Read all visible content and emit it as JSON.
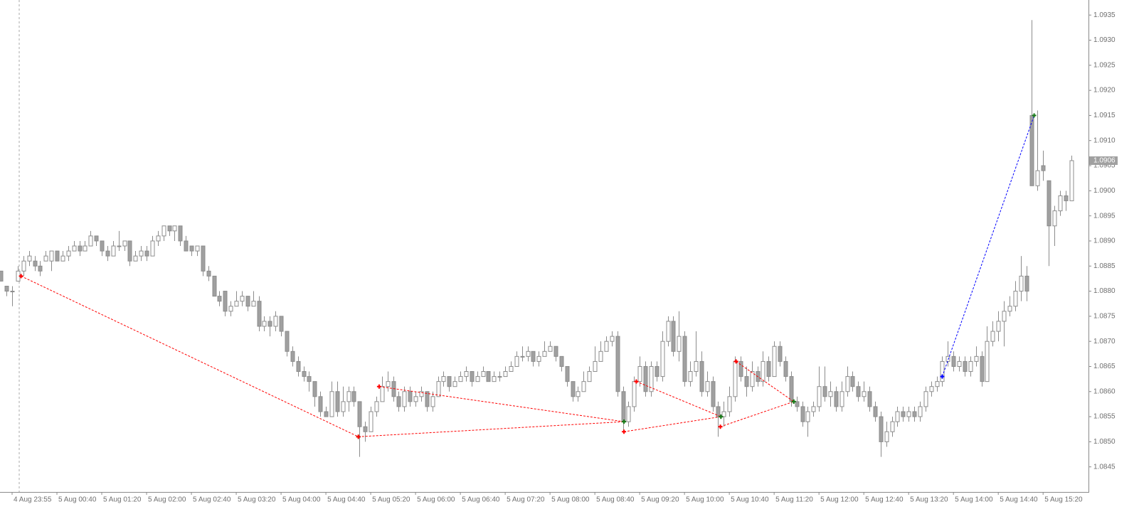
{
  "chart_data": {
    "type": "candlestick",
    "up_color": "#ffffff",
    "down_color": "#a0a0a0",
    "outline_color": "#8c8c8c",
    "current_price": 1.0906,
    "xlim": [
      -0.16,
      194.1
    ],
    "ylim": [
      1.084,
      1.0938
    ],
    "xticks": [
      {
        "value": 2,
        "label": "4 Aug 23:55"
      },
      {
        "value": 10,
        "label": "5 Aug 00:40"
      },
      {
        "value": 18,
        "label": "5 Aug 01:20"
      },
      {
        "value": 26,
        "label": "5 Aug 02:00"
      },
      {
        "value": 34,
        "label": "5 Aug 02:40"
      },
      {
        "value": 42,
        "label": "5 Aug 03:20"
      },
      {
        "value": 50,
        "label": "5 Aug 04:00"
      },
      {
        "value": 58,
        "label": "5 Aug 04:40"
      },
      {
        "value": 66,
        "label": "5 Aug 05:20"
      },
      {
        "value": 74,
        "label": "5 Aug 06:00"
      },
      {
        "value": 82,
        "label": "5 Aug 06:40"
      },
      {
        "value": 90,
        "label": "5 Aug 07:20"
      },
      {
        "value": 98,
        "label": "5 Aug 08:00"
      },
      {
        "value": 106,
        "label": "5 Aug 08:40"
      },
      {
        "value": 114,
        "label": "5 Aug 09:20"
      },
      {
        "value": 122,
        "label": "5 Aug 10:00"
      },
      {
        "value": 130,
        "label": "5 Aug 10:40"
      },
      {
        "value": 138,
        "label": "5 Aug 11:20"
      },
      {
        "value": 146,
        "label": "5 Aug 12:00"
      },
      {
        "value": 154,
        "label": "5 Aug 12:40"
      },
      {
        "value": 162,
        "label": "5 Aug 13:20"
      },
      {
        "value": 170,
        "label": "5 Aug 14:00"
      },
      {
        "value": 178,
        "label": "5 Aug 14:40"
      },
      {
        "value": 186,
        "label": "5 Aug 15:20"
      }
    ],
    "yticks": [
      1.0845,
      {
        "value": 1.085,
        "label": "1.0850"
      },
      1.0855,
      {
        "value": 1.086,
        "label": "1.0860"
      },
      1.0865,
      {
        "value": 1.087,
        "label": "1.0870"
      },
      1.0875,
      {
        "value": 1.088,
        "label": "1.0880"
      },
      1.0885,
      {
        "value": 1.089,
        "label": "1.0890"
      },
      1.0895,
      {
        "value": 1.09,
        "label": "1.0900"
      },
      1.0905,
      {
        "value": 1.091,
        "label": "1.0910"
      },
      1.0915,
      {
        "value": 1.092,
        "label": "1.0920"
      },
      1.0925,
      {
        "value": 1.093,
        "label": "1.0930"
      },
      1.0935
    ],
    "candles": [
      [
        1.0884,
        1.0884,
        1.0882,
        1.0882
      ],
      [
        1.0881,
        1.0881,
        1.0879,
        1.088
      ],
      [
        1.088,
        1.0881,
        1.0877,
        1.088
      ],
      [
        1.0882,
        1.0885,
        1.0882,
        1.0884
      ],
      [
        1.0884,
        1.0887,
        1.0883,
        1.0886
      ],
      [
        1.0886,
        1.0888,
        1.0885,
        1.0887
      ],
      [
        1.0886,
        1.0887,
        1.0884,
        1.0885
      ],
      [
        1.0885,
        1.0886,
        1.0883,
        1.0884
      ],
      [
        1.0886,
        1.0888,
        1.0886,
        1.0887
      ],
      [
        1.0886,
        1.0888,
        1.0884,
        1.0888
      ],
      [
        1.0888,
        1.0888,
        1.0886,
        1.0886
      ],
      [
        1.0886,
        1.0888,
        1.0886,
        1.0887
      ],
      [
        1.0887,
        1.0889,
        1.0886,
        1.0888
      ],
      [
        1.0888,
        1.089,
        1.0888,
        1.0889
      ],
      [
        1.0889,
        1.089,
        1.0887,
        1.0888
      ],
      [
        1.0888,
        1.089,
        1.0888,
        1.0889
      ],
      [
        1.0889,
        1.0892,
        1.0889,
        1.0891
      ],
      [
        1.0891,
        1.0891,
        1.0889,
        1.089
      ],
      [
        1.089,
        1.089,
        1.0887,
        1.0888
      ],
      [
        1.0888,
        1.0889,
        1.0886,
        1.0887
      ],
      [
        1.0887,
        1.089,
        1.0887,
        1.0889
      ],
      [
        1.0889,
        1.0892,
        1.0888,
        1.0889
      ],
      [
        1.0889,
        1.089,
        1.0888,
        1.089
      ],
      [
        1.089,
        1.089,
        1.0885,
        1.0886
      ],
      [
        1.0886,
        1.0888,
        1.0886,
        1.0887
      ],
      [
        1.0887,
        1.0889,
        1.0886,
        1.0888
      ],
      [
        1.0888,
        1.0889,
        1.0886,
        1.0887
      ],
      [
        1.0887,
        1.0891,
        1.0887,
        1.089
      ],
      [
        1.089,
        1.0892,
        1.0889,
        1.0891
      ],
      [
        1.0891,
        1.0893,
        1.089,
        1.0893
      ],
      [
        1.0893,
        1.0893,
        1.0891,
        1.0892
      ],
      [
        1.0892,
        1.0893,
        1.089,
        1.0893
      ],
      [
        1.0893,
        1.0893,
        1.0889,
        1.089
      ],
      [
        1.089,
        1.0891,
        1.0888,
        1.0888
      ],
      [
        1.0889,
        1.0889,
        1.0887,
        1.0888
      ],
      [
        1.0888,
        1.0889,
        1.0887,
        1.0889
      ],
      [
        1.0889,
        1.0889,
        1.0883,
        1.0884
      ],
      [
        1.0884,
        1.0885,
        1.0882,
        1.0883
      ],
      [
        1.0883,
        1.0883,
        1.0879,
        1.0879
      ],
      [
        1.0879,
        1.088,
        1.0877,
        1.0878
      ],
      [
        1.088,
        1.088,
        1.0875,
        1.0876
      ],
      [
        1.0876,
        1.0878,
        1.0875,
        1.0877
      ],
      [
        1.0877,
        1.088,
        1.0877,
        1.0878
      ],
      [
        1.0878,
        1.088,
        1.0877,
        1.0879
      ],
      [
        1.0879,
        1.0879,
        1.0876,
        1.0877
      ],
      [
        1.0877,
        1.088,
        1.0877,
        1.0878
      ],
      [
        1.0878,
        1.0879,
        1.0872,
        1.0873
      ],
      [
        1.0873,
        1.0875,
        1.0872,
        1.0874
      ],
      [
        1.0874,
        1.0875,
        1.0871,
        1.0873
      ],
      [
        1.0873,
        1.0876,
        1.0872,
        1.0875
      ],
      [
        1.0875,
        1.0875,
        1.0871,
        1.0872
      ],
      [
        1.0872,
        1.0872,
        1.0867,
        1.0868
      ],
      [
        1.0868,
        1.0869,
        1.0865,
        1.0866
      ],
      [
        1.0866,
        1.0867,
        1.0863,
        1.0864
      ],
      [
        1.0864,
        1.0865,
        1.0862,
        1.0863
      ],
      [
        1.0863,
        1.0864,
        1.086,
        1.0862
      ],
      [
        1.0862,
        1.0862,
        1.0857,
        1.0859
      ],
      [
        1.0859,
        1.086,
        1.0855,
        1.0856
      ],
      [
        1.0856,
        1.0857,
        1.0855,
        1.0855
      ],
      [
        1.0855,
        1.0862,
        1.0855,
        1.086
      ],
      [
        1.086,
        1.0862,
        1.0855,
        1.0856
      ],
      [
        1.0856,
        1.0861,
        1.0855,
        1.0858
      ],
      [
        1.0858,
        1.0861,
        1.0856,
        1.086
      ],
      [
        1.086,
        1.0861,
        1.0857,
        1.0858
      ],
      [
        1.0858,
        1.0858,
        1.0847,
        1.0853
      ],
      [
        1.0853,
        1.0854,
        1.085,
        1.0852
      ],
      [
        1.0852,
        1.0857,
        1.0852,
        1.0856
      ],
      [
        1.0856,
        1.0859,
        1.0855,
        1.0858
      ],
      [
        1.0858,
        1.0863,
        1.0858,
        1.0861
      ],
      [
        1.0861,
        1.0864,
        1.086,
        1.0862
      ],
      [
        1.0862,
        1.0863,
        1.0858,
        1.0859
      ],
      [
        1.0859,
        1.086,
        1.0856,
        1.0857
      ],
      [
        1.0857,
        1.0861,
        1.0856,
        1.086
      ],
      [
        1.086,
        1.0861,
        1.0857,
        1.0858
      ],
      [
        1.0858,
        1.086,
        1.0857,
        1.0859
      ],
      [
        1.0859,
        1.0861,
        1.0858,
        1.086
      ],
      [
        1.086,
        1.086,
        1.0856,
        1.0857
      ],
      [
        1.0857,
        1.086,
        1.0856,
        1.0859
      ],
      [
        1.0859,
        1.0863,
        1.0859,
        1.0862
      ],
      [
        1.0862,
        1.0864,
        1.0861,
        1.0863
      ],
      [
        1.0863,
        1.0863,
        1.086,
        1.0861
      ],
      [
        1.0861,
        1.0863,
        1.0861,
        1.0862
      ],
      [
        1.0862,
        1.0864,
        1.0862,
        1.0863
      ],
      [
        1.0863,
        1.0865,
        1.0862,
        1.0864
      ],
      [
        1.0864,
        1.0864,
        1.0861,
        1.0862
      ],
      [
        1.0862,
        1.0864,
        1.0862,
        1.0863
      ],
      [
        1.0863,
        1.0865,
        1.0863,
        1.0864
      ],
      [
        1.0864,
        1.0864,
        1.0862,
        1.0862
      ],
      [
        1.0862,
        1.0864,
        1.0862,
        1.0863
      ],
      [
        1.0863,
        1.0864,
        1.0862,
        1.0863
      ],
      [
        1.0863,
        1.0865,
        1.0863,
        1.0864
      ],
      [
        1.0864,
        1.0866,
        1.0864,
        1.0865
      ],
      [
        1.0865,
        1.0868,
        1.0865,
        1.0867
      ],
      [
        1.0867,
        1.0869,
        1.0866,
        1.0867
      ],
      [
        1.0867,
        1.0869,
        1.0866,
        1.0868
      ],
      [
        1.0868,
        1.0868,
        1.0865,
        1.0866
      ],
      [
        1.0866,
        1.0868,
        1.0865,
        1.0867
      ],
      [
        1.0867,
        1.087,
        1.0867,
        1.0868
      ],
      [
        1.0868,
        1.087,
        1.0868,
        1.0869
      ],
      [
        1.0869,
        1.0869,
        1.0866,
        1.0867
      ],
      [
        1.0867,
        1.0867,
        1.0864,
        1.0865
      ],
      [
        1.0865,
        1.0865,
        1.0861,
        1.0862
      ],
      [
        1.0862,
        1.0862,
        1.0858,
        1.0859
      ],
      [
        1.0859,
        1.0861,
        1.0858,
        1.086
      ],
      [
        1.086,
        1.0864,
        1.086,
        1.0862
      ],
      [
        1.0862,
        1.0865,
        1.0862,
        1.0864
      ],
      [
        1.0864,
        1.0869,
        1.0864,
        1.0866
      ],
      [
        1.0866,
        1.087,
        1.0866,
        1.0868
      ],
      [
        1.0868,
        1.0871,
        1.0868,
        1.087
      ],
      [
        1.087,
        1.0872,
        1.0869,
        1.0871
      ],
      [
        1.0871,
        1.0872,
        1.0859,
        1.086
      ],
      [
        1.086,
        1.0861,
        1.0852,
        1.0854
      ],
      [
        1.0854,
        1.0858,
        1.0853,
        1.0857
      ],
      [
        1.0857,
        1.0863,
        1.0856,
        1.0862
      ],
      [
        1.0862,
        1.0867,
        1.0861,
        1.0865
      ],
      [
        1.0865,
        1.0866,
        1.0859,
        1.086
      ],
      [
        1.086,
        1.0866,
        1.0859,
        1.0865
      ],
      [
        1.0865,
        1.0866,
        1.0862,
        1.0863
      ],
      [
        1.0863,
        1.0872,
        1.0862,
        1.087
      ],
      [
        1.087,
        1.0875,
        1.0869,
        1.0874
      ],
      [
        1.0874,
        1.0875,
        1.0867,
        1.0868
      ],
      [
        1.0868,
        1.0876,
        1.0866,
        1.0871
      ],
      [
        1.0871,
        1.0872,
        1.0861,
        1.0862
      ],
      [
        1.0862,
        1.0866,
        1.0861,
        1.0864
      ],
      [
        1.0864,
        1.0872,
        1.0863,
        1.0866
      ],
      [
        1.0866,
        1.0868,
        1.0859,
        1.086
      ],
      [
        1.086,
        1.0864,
        1.0859,
        1.0862
      ],
      [
        1.0862,
        1.0863,
        1.0856,
        1.0857
      ],
      [
        1.0857,
        1.0858,
        1.0851,
        1.0855
      ],
      [
        1.0855,
        1.0858,
        1.0853,
        1.0856
      ],
      [
        1.0856,
        1.0861,
        1.0855,
        1.0859
      ],
      [
        1.0859,
        1.0867,
        1.0858,
        1.0866
      ],
      [
        1.0866,
        1.0867,
        1.0862,
        1.0863
      ],
      [
        1.0863,
        1.0865,
        1.0859,
        1.0861
      ],
      [
        1.0861,
        1.0866,
        1.086,
        1.0864
      ],
      [
        1.0864,
        1.0865,
        1.0861,
        1.0862
      ],
      [
        1.0862,
        1.0868,
        1.0861,
        1.0866
      ],
      [
        1.0866,
        1.0867,
        1.0862,
        1.0863
      ],
      [
        1.0863,
        1.087,
        1.0863,
        1.0869
      ],
      [
        1.0869,
        1.087,
        1.0865,
        1.0866
      ],
      [
        1.0866,
        1.0867,
        1.0862,
        1.0863
      ],
      [
        1.0863,
        1.0864,
        1.0857,
        1.0858
      ],
      [
        1.0858,
        1.0859,
        1.0856,
        1.0857
      ],
      [
        1.0857,
        1.0858,
        1.0853,
        1.0854
      ],
      [
        1.0854,
        1.0857,
        1.0851,
        1.0856
      ],
      [
        1.0856,
        1.0858,
        1.0855,
        1.0857
      ],
      [
        1.0857,
        1.0865,
        1.0856,
        1.0861
      ],
      [
        1.0861,
        1.0865,
        1.0858,
        1.0859
      ],
      [
        1.0859,
        1.0862,
        1.0857,
        1.086
      ],
      [
        1.086,
        1.0861,
        1.0856,
        1.0857
      ],
      [
        1.0857,
        1.0862,
        1.0856,
        1.086
      ],
      [
        1.086,
        1.0865,
        1.0859,
        1.0863
      ],
      [
        1.0863,
        1.0864,
        1.086,
        1.0861
      ],
      [
        1.0861,
        1.0862,
        1.0858,
        1.0859
      ],
      [
        1.0859,
        1.0862,
        1.0858,
        1.086
      ],
      [
        1.086,
        1.0861,
        1.0856,
        1.0857
      ],
      [
        1.0857,
        1.0858,
        1.0854,
        1.0855
      ],
      [
        1.0855,
        1.0856,
        1.0847,
        1.085
      ],
      [
        1.085,
        1.0854,
        1.0849,
        1.0852
      ],
      [
        1.0852,
        1.0855,
        1.0851,
        1.0854
      ],
      [
        1.0854,
        1.0857,
        1.0853,
        1.0856
      ],
      [
        1.0856,
        1.0857,
        1.0854,
        1.0855
      ],
      [
        1.0855,
        1.0857,
        1.0854,
        1.0856
      ],
      [
        1.0856,
        1.0857,
        1.0854,
        1.0855
      ],
      [
        1.0855,
        1.0858,
        1.0854,
        1.0857
      ],
      [
        1.0857,
        1.0861,
        1.0856,
        1.086
      ],
      [
        1.086,
        1.0862,
        1.0859,
        1.0861
      ],
      [
        1.0861,
        1.0863,
        1.086,
        1.0862
      ],
      [
        1.0862,
        1.0867,
        1.0861,
        1.0866
      ],
      [
        1.0866,
        1.087,
        1.0865,
        1.0867
      ],
      [
        1.0867,
        1.0868,
        1.0864,
        1.0865
      ],
      [
        1.0865,
        1.0867,
        1.0864,
        1.0866
      ],
      [
        1.0866,
        1.0867,
        1.0863,
        1.0864
      ],
      [
        1.0864,
        1.0867,
        1.0863,
        1.0866
      ],
      [
        1.0866,
        1.0869,
        1.0865,
        1.0867
      ],
      [
        1.0867,
        1.0868,
        1.0861,
        1.0862
      ],
      [
        1.0862,
        1.0873,
        1.0862,
        1.087
      ],
      [
        1.087,
        1.0874,
        1.0869,
        1.0872
      ],
      [
        1.0872,
        1.0876,
        1.087,
        1.0874
      ],
      [
        1.0874,
        1.0878,
        1.0869,
        1.0876
      ],
      [
        1.0876,
        1.0879,
        1.0875,
        1.0877
      ],
      [
        1.0877,
        1.0882,
        1.0876,
        1.088
      ],
      [
        1.088,
        1.0887,
        1.0878,
        1.0883
      ],
      [
        1.0883,
        1.0885,
        1.0878,
        1.088
      ],
      [
        1.0915,
        1.0934,
        1.0901,
        1.0901
      ],
      [
        1.0901,
        1.0916,
        1.09,
        1.0904
      ],
      [
        1.0905,
        1.0908,
        1.0902,
        1.0904
      ],
      [
        1.0902,
        1.0902,
        1.0885,
        1.0893
      ],
      [
        1.0893,
        1.0897,
        1.0889,
        1.0896
      ],
      [
        1.0896,
        1.09,
        1.0895,
        1.0899
      ],
      [
        1.0899,
        1.09,
        1.0896,
        1.0898
      ],
      [
        1.0898,
        1.0907,
        1.0898,
        1.0906
      ]
    ],
    "trades": [
      {
        "x": [
          3.6,
          63.8
        ],
        "y": [
          1.0883,
          1.0851
        ],
        "color": "#ff0000"
      },
      {
        "x": [
          63.8,
          111.2
        ],
        "y": [
          1.0851,
          1.0854
        ],
        "color": "#ff0000"
      },
      {
        "x": [
          67.5,
          111.2
        ],
        "y": [
          1.0861,
          1.0854
        ],
        "color": "#ff0000"
      },
      {
        "x": [
          111.2,
          128.5
        ],
        "y": [
          1.0852,
          1.0855
        ],
        "color": "#ff0000"
      },
      {
        "x": [
          113.4,
          128.5
        ],
        "y": [
          1.0862,
          1.0855
        ],
        "color": "#ff0000"
      },
      {
        "x": [
          128.4,
          141.5
        ],
        "y": [
          1.0853,
          1.0858
        ],
        "color": "#ff0000"
      },
      {
        "x": [
          131.2,
          141.5
        ],
        "y": [
          1.0866,
          1.0858
        ],
        "color": "#ff0000"
      },
      {
        "x": [
          168,
          184.4
        ],
        "y": [
          1.0863,
          1.0915
        ],
        "color": "#0000ff"
      }
    ]
  }
}
